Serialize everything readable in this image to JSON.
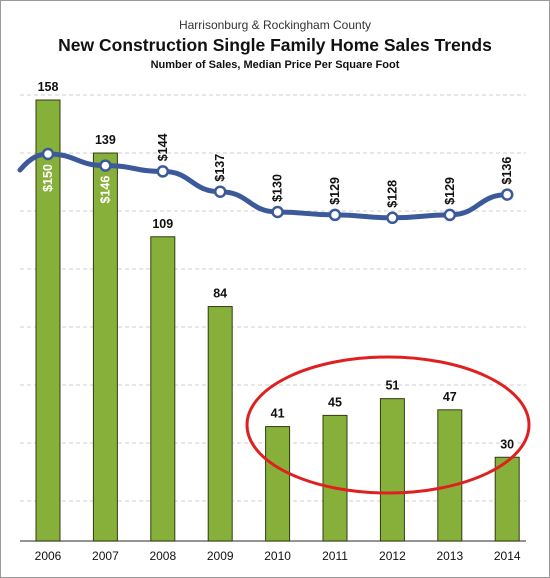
{
  "header": {
    "subtitle": "Harrisonburg & Rockingham County",
    "title": "New Construction Single Family Home Sales Trends",
    "note": "Number of Sales, Median Price Per Square Foot"
  },
  "colors": {
    "bar": "#86b03a",
    "line": "#3c5a99",
    "highlight_circle": "#e02020"
  },
  "chart_data": {
    "type": "bar",
    "categories": [
      "2006",
      "2007",
      "2008",
      "2009",
      "2010",
      "2011",
      "2012",
      "2013",
      "2014"
    ],
    "series": [
      {
        "type": "bar",
        "values": [
          158,
          139,
          109,
          84,
          41,
          45,
          51,
          47,
          30
        ]
      },
      {
        "type": "line",
        "values": [
          150,
          146,
          144,
          137,
          130,
          129,
          128,
          129,
          136
        ]
      }
    ],
    "bar_labels": [
      "158",
      "139",
      "109",
      "84",
      "41",
      "45",
      "51",
      "47",
      "30"
    ],
    "price_labels": [
      "$150",
      "$146",
      "$144",
      "$137",
      "$130",
      "$129",
      "$128",
      "$129",
      "$136"
    ],
    "sales_range": [
      0,
      175
    ],
    "price_range": [
      0,
      175
    ],
    "grid": true,
    "annotation": "highlight circle around 2010-2014 bars"
  }
}
